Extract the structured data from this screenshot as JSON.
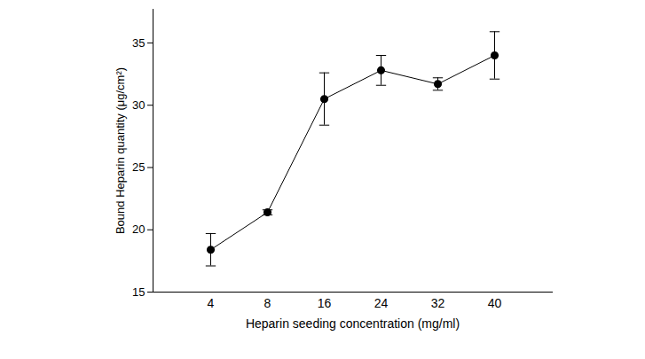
{
  "chart_data": {
    "type": "line",
    "x_label": "Heparin seeding concentration (mg/ml)",
    "y_label": "Bound Heparin quantity (μg/cm²)",
    "categories": [
      4,
      8,
      16,
      24,
      32,
      40
    ],
    "values": [
      18.4,
      21.4,
      30.5,
      32.8,
      31.7,
      34.0
    ],
    "errors": [
      1.3,
      0.2,
      2.1,
      1.2,
      0.5,
      1.9
    ],
    "color": "#000000",
    "marker": "circle",
    "line_style": "solid",
    "ylim": [
      15,
      37.7
    ],
    "yticks": [
      15,
      20,
      25,
      30,
      35
    ],
    "grid": false
  }
}
